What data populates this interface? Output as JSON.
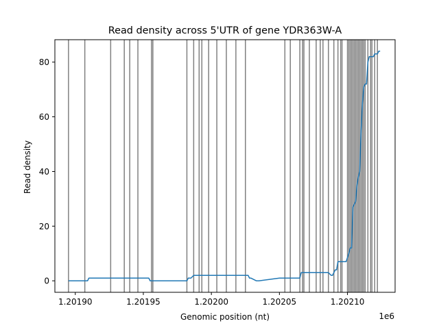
{
  "chart_data": {
    "type": "line",
    "title": "Read density across 5'UTR of gene YDR363W-A",
    "xlabel": "Genomic position (nt)",
    "ylabel": "Read density",
    "x_offset_label": "1e6",
    "xlim": [
      1.201885,
      1.202135
    ],
    "ylim": [
      -4.2,
      88.2
    ],
    "xticks": [
      1.2019,
      1.20195,
      1.202,
      1.20205,
      1.2021
    ],
    "xtick_labels": [
      "1.20190",
      "1.20195",
      "1.20200",
      "1.20205",
      "1.20210"
    ],
    "yticks": [
      0,
      20,
      40,
      60,
      80
    ],
    "ytick_labels": [
      "0",
      "20",
      "40",
      "60",
      "80"
    ],
    "grid": false,
    "line_color": "#1f77b4",
    "marker_line_color": "#808080",
    "series": [
      {
        "x": [
          1.201895,
          1.201909,
          1.20191,
          1.201923,
          1.201935,
          1.201954,
          1.201955,
          1.201958,
          1.201965,
          1.201978,
          1.201982,
          1.201983,
          1.201985,
          1.201987,
          1.201994,
          1.202001,
          1.202008,
          1.202015,
          1.202022,
          1.202027,
          1.202028,
          1.202029,
          1.202033,
          1.202034,
          1.202035,
          1.20205,
          1.202055,
          1.202061,
          1.202065,
          1.202066,
          1.202082,
          1.202086,
          1.202088,
          1.202089,
          1.202091,
          1.202092,
          1.202093,
          1.202094,
          1.202095,
          1.202098,
          1.202099,
          1.202101,
          1.202102,
          1.202103,
          1.202104,
          1.202105,
          1.202106,
          1.202107,
          1.202108,
          1.202109,
          1.20211,
          1.202111,
          1.202112,
          1.202113,
          1.202114,
          1.202115,
          1.202116,
          1.202117,
          1.202119,
          1.20212,
          1.202121,
          1.202122,
          1.202123,
          1.202124
        ],
        "y": [
          0,
          0,
          1,
          1,
          1,
          1,
          0,
          0,
          0,
          0,
          0,
          1,
          1,
          2,
          2,
          2,
          2,
          2,
          2,
          2,
          1,
          1,
          0,
          0,
          0,
          1,
          1,
          1,
          1,
          3,
          3,
          3,
          2,
          2,
          4,
          4,
          7,
          7,
          7,
          7,
          7,
          10,
          12,
          12,
          27,
          28,
          29,
          35,
          38,
          40,
          55,
          65,
          71,
          72,
          72,
          80,
          82,
          82,
          82,
          83,
          83,
          83,
          84,
          84
        ]
      }
    ],
    "vlines": [
      1.201895,
      1.201907,
      1.201926,
      1.201936,
      1.20194,
      1.201946,
      1.201956,
      1.201957,
      1.201982,
      1.201987,
      1.201991,
      1.201993,
      1.201998,
      1.202004,
      1.202011,
      1.202018,
      1.202025,
      1.202054,
      1.202058,
      1.202065,
      1.202067,
      1.202068,
      1.202072,
      1.202077,
      1.20208,
      1.202082,
      1.202086,
      1.20209,
      1.202093,
      1.202095,
      1.202096,
      1.2021,
      1.202101,
      1.202102,
      1.202103,
      1.202104,
      1.202105,
      1.202106,
      1.202107,
      1.202108,
      1.202109,
      1.20211,
      1.202111,
      1.202112,
      1.202113,
      1.202115,
      1.202117,
      1.202118,
      1.20212,
      1.202122
    ]
  }
}
